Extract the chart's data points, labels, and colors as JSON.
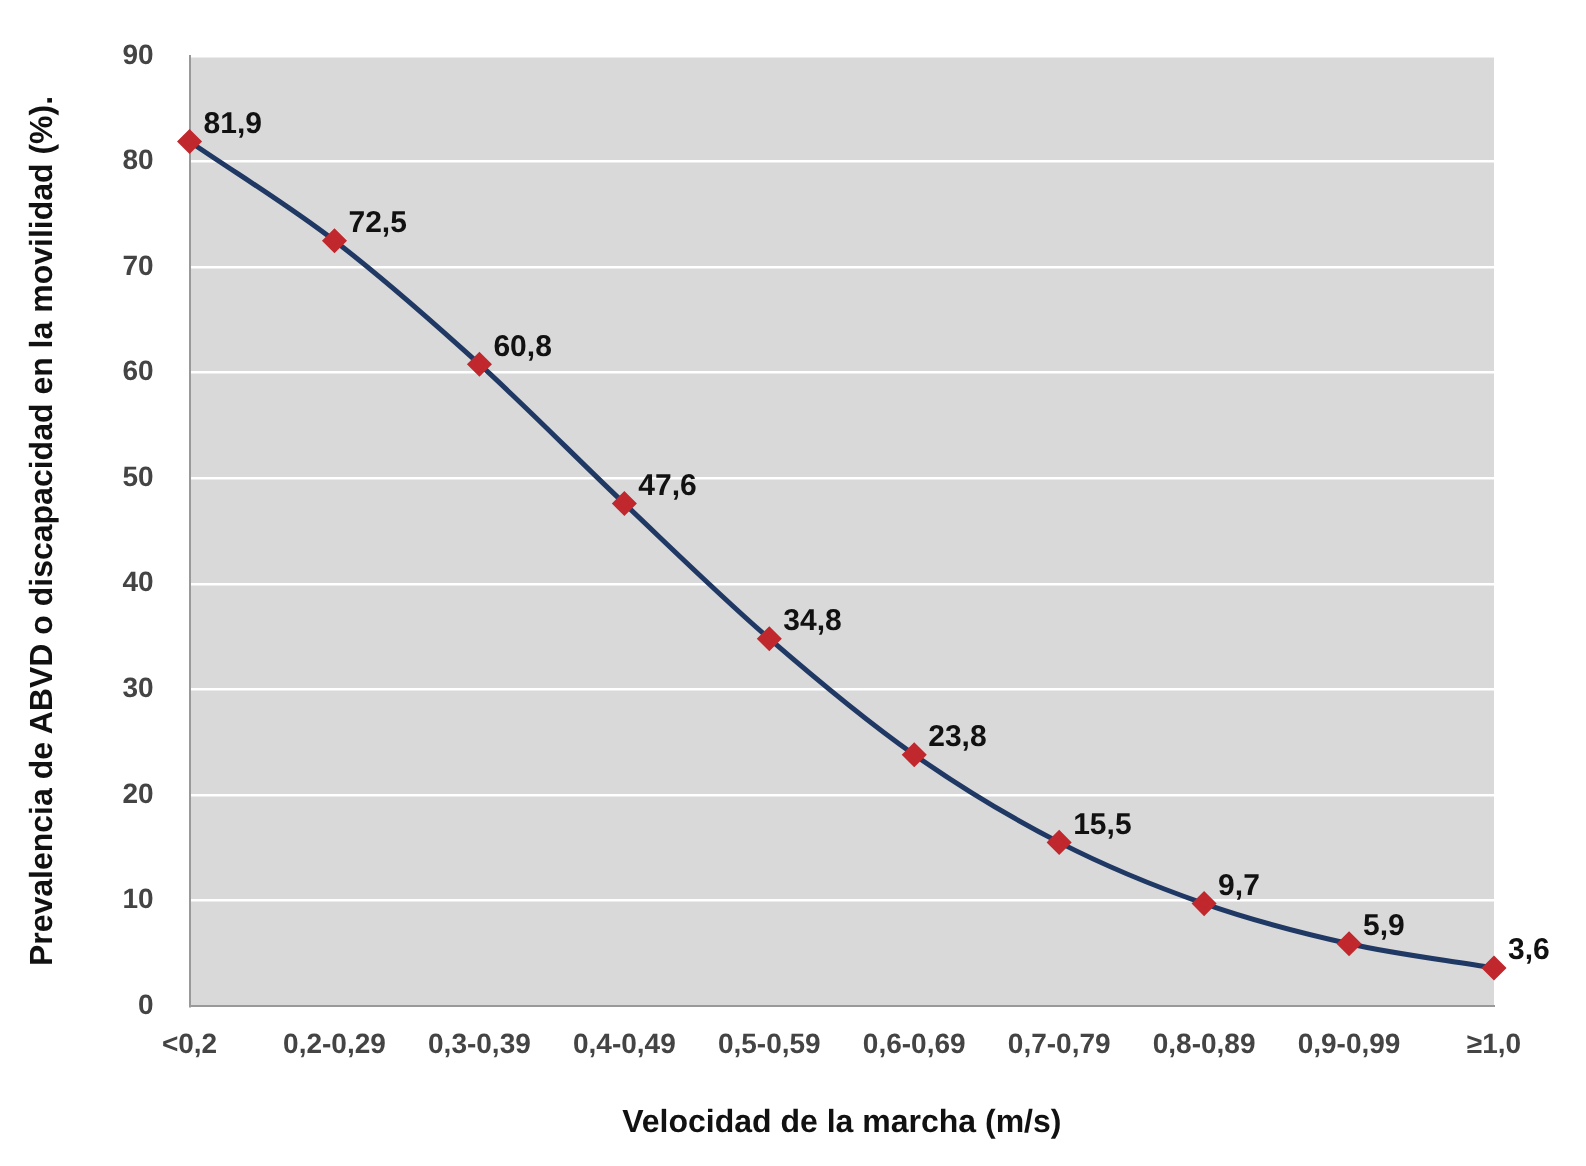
{
  "chart_data": {
    "type": "line",
    "xlabel": "Velocidad de la marcha (m/s)",
    "ylabel": "Prevalencia de ABVD o discapacidad en la movilidad (%).",
    "categories": [
      "<0,2",
      "0,2-0,29",
      "0,3-0,39",
      "0,4-0,49",
      "0,5-0,59",
      "0,6-0,69",
      "0,7-0,79",
      "0,8-0,89",
      "0,9-0,99",
      "≥1,0"
    ],
    "series": [
      {
        "color": "#1f3864",
        "values": [
          81.9,
          72.5,
          60.8,
          47.6,
          34.8,
          23.8,
          15.5,
          9.7,
          5.9,
          3.6
        ],
        "value_labels": [
          "81,9",
          "72,5",
          "60,8",
          "47,6",
          "34,8",
          "23,8",
          "15,5",
          "9,7",
          "5,9",
          "3,6"
        ]
      }
    ],
    "ylim": [
      0,
      90
    ],
    "yticks": [
      0,
      10,
      20,
      30,
      40,
      50,
      60,
      70,
      80,
      90
    ],
    "grid": "y",
    "legend": false,
    "marker": "diamond",
    "line_style": "solid"
  }
}
